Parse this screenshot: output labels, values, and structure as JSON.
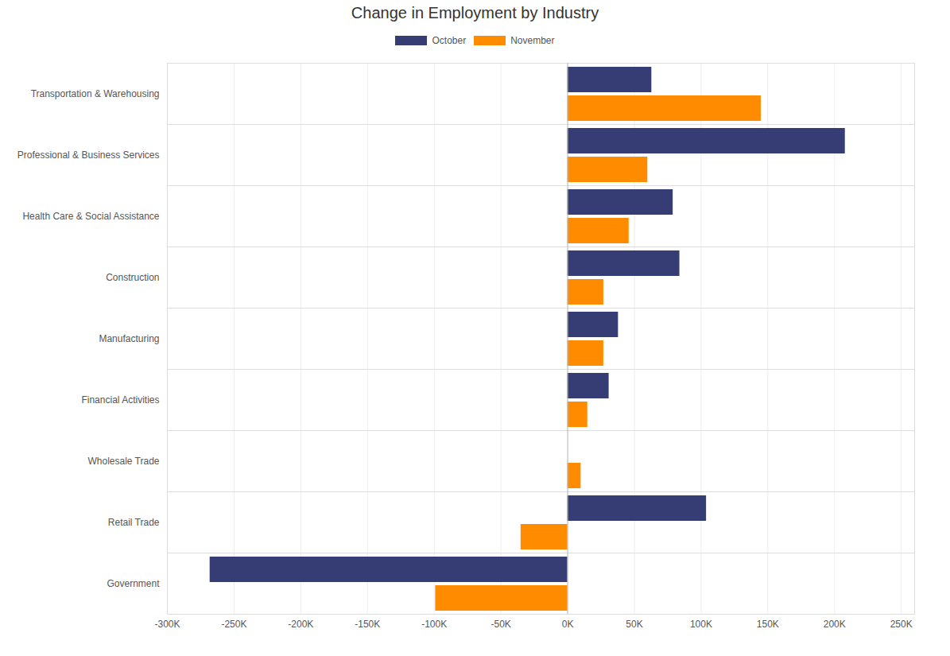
{
  "chart_data": {
    "type": "bar",
    "title": "Change in Employment by Industry",
    "orientation": "horizontal",
    "grid": true,
    "legend": "top",
    "categories": [
      "Transportation & Warehousing",
      "Professional & Business Services",
      "Health Care & Social Assistance",
      "Construction",
      "Manufacturing",
      "Financial Activities",
      "Wholesale Trade",
      "Retail Trade",
      "Government"
    ],
    "series": [
      {
        "name": "October",
        "color": "#363d75",
        "values": [
          63000,
          208000,
          79000,
          84000,
          38000,
          31000,
          0,
          104000,
          -268000
        ]
      },
      {
        "name": "November",
        "color": "#ff8c00",
        "values": [
          145000,
          60000,
          46000,
          27000,
          27000,
          15000,
          10000,
          -35000,
          -99000
        ]
      }
    ],
    "xlim": [
      -300000,
      260000
    ],
    "xticks": [
      {
        "value": -300000,
        "label": "-300K"
      },
      {
        "value": -250000,
        "label": "-250K"
      },
      {
        "value": -200000,
        "label": "-200K"
      },
      {
        "value": -150000,
        "label": "-150K"
      },
      {
        "value": -100000,
        "label": "-100K"
      },
      {
        "value": -50000,
        "label": "-50K"
      },
      {
        "value": 0,
        "label": "0K"
      },
      {
        "value": 50000,
        "label": "50K"
      },
      {
        "value": 100000,
        "label": "100K"
      },
      {
        "value": 150000,
        "label": "150K"
      },
      {
        "value": 200000,
        "label": "200K"
      },
      {
        "value": 250000,
        "label": "250K"
      }
    ]
  }
}
